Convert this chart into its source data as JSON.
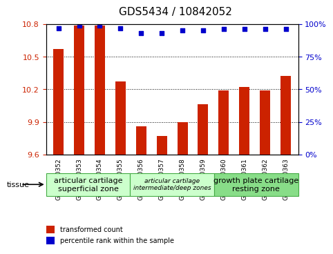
{
  "title": "GDS5434 / 10842052",
  "samples": [
    "GSM1310352",
    "GSM1310353",
    "GSM1310354",
    "GSM1310355",
    "GSM1310356",
    "GSM1310357",
    "GSM1310358",
    "GSM1310359",
    "GSM1310360",
    "GSM1310361",
    "GSM1310362",
    "GSM1310363"
  ],
  "bar_values": [
    10.57,
    10.79,
    10.79,
    10.27,
    9.86,
    9.77,
    9.9,
    10.06,
    10.19,
    10.22,
    10.19,
    10.32
  ],
  "percentile_values": [
    97,
    99,
    99,
    97,
    93,
    93,
    95,
    95,
    96,
    96,
    96,
    96
  ],
  "bar_color": "#cc2200",
  "percentile_color": "#0000cc",
  "ylim_left": [
    9.6,
    10.8
  ],
  "ylim_right": [
    0,
    100
  ],
  "yticks_left": [
    9.6,
    9.9,
    10.2,
    10.5,
    10.8
  ],
  "yticks_right": [
    0,
    25,
    50,
    75,
    100
  ],
  "tissue_groups": [
    {
      "label": "articular cartilage\nsuperficial zone",
      "start": 0,
      "end": 4,
      "color": "#ccffcc",
      "fontsize": 8,
      "italic": false
    },
    {
      "label": "articular cartilage\nintermediate/deep zones",
      "start": 4,
      "end": 8,
      "color": "#ccffcc",
      "fontsize": 6.5,
      "italic": true
    },
    {
      "label": "growth plate cartilage\nresting zone",
      "start": 8,
      "end": 12,
      "color": "#88dd88",
      "fontsize": 8,
      "italic": false
    }
  ],
  "tissue_label": "tissue",
  "legend_bar_label": "transformed count",
  "legend_pct_label": "percentile rank within the sample",
  "plot_bg": "#ffffff",
  "title_fontsize": 11,
  "tick_fontsize": 8
}
